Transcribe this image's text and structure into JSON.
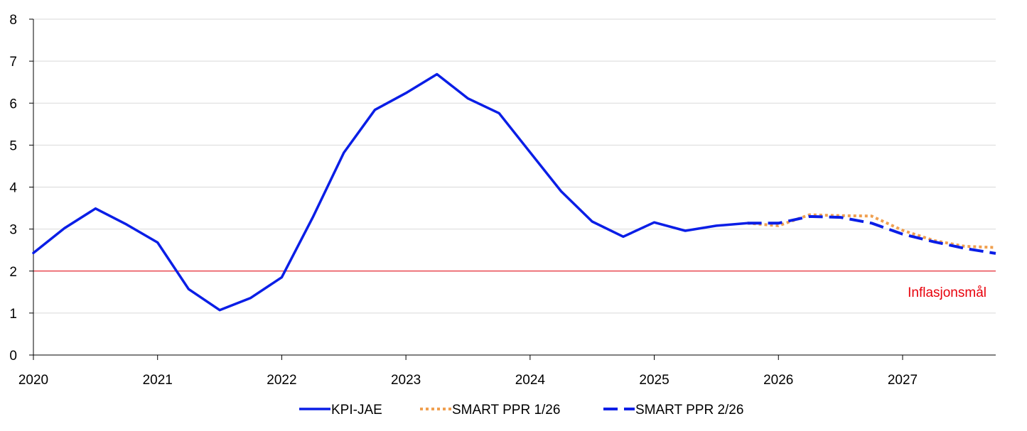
{
  "chart_data": {
    "type": "line",
    "title": "",
    "xlabel": "",
    "ylabel": "",
    "xlim": [
      2020.0,
      2027.75
    ],
    "ylim": [
      0,
      8
    ],
    "y_ticks": [
      0,
      1,
      2,
      3,
      4,
      5,
      6,
      7,
      8
    ],
    "x_ticks": [
      {
        "value": 2020,
        "label": "2020"
      },
      {
        "value": 2021,
        "label": "2021"
      },
      {
        "value": 2022,
        "label": "2022"
      },
      {
        "value": 2023,
        "label": "2023"
      },
      {
        "value": 2024,
        "label": "2024"
      },
      {
        "value": 2025,
        "label": "2025"
      },
      {
        "value": 2026,
        "label": "2026"
      },
      {
        "value": 2027,
        "label": "2027"
      }
    ],
    "grid": "horizontal",
    "legend_position": "bottom-center",
    "reference_line": {
      "y": 2,
      "label": "Inflasjonsmål",
      "color": "#e8000b"
    },
    "series": [
      {
        "name": "KPI-JAE",
        "style": "solid",
        "color": "#0a1ee6",
        "x": [
          2020.0,
          2020.25,
          2020.5,
          2020.75,
          2021.0,
          2021.25,
          2021.5,
          2021.75,
          2022.0,
          2022.25,
          2022.5,
          2022.75,
          2023.0,
          2023.25,
          2023.5,
          2023.75,
          2024.0,
          2024.25,
          2024.5,
          2024.75,
          2025.0,
          2025.25,
          2025.5,
          2025.75
        ],
        "values": [
          2.43,
          3.02,
          3.49,
          3.11,
          2.68,
          1.57,
          1.07,
          1.36,
          1.85,
          3.28,
          4.82,
          5.84,
          6.24,
          6.69,
          6.11,
          5.76,
          4.83,
          3.9,
          3.18,
          2.82,
          3.16,
          2.96,
          3.08,
          3.14
        ]
      },
      {
        "name": "SMART PPR 1/26",
        "style": "dotted",
        "color": "#f0a050",
        "x": [
          2025.75,
          2026.0,
          2026.25,
          2026.5,
          2026.75,
          2027.0,
          2027.25,
          2027.5,
          2027.75
        ],
        "values": [
          3.14,
          3.08,
          3.34,
          3.32,
          3.31,
          2.97,
          2.73,
          2.59,
          2.56
        ]
      },
      {
        "name": "SMART PPR 2/26",
        "style": "dashed",
        "color": "#0a1ee6",
        "x": [
          2025.75,
          2026.0,
          2026.25,
          2026.5,
          2026.75,
          2027.0,
          2027.25,
          2027.5,
          2027.75
        ],
        "values": [
          3.14,
          3.14,
          3.3,
          3.28,
          3.14,
          2.88,
          2.7,
          2.54,
          2.42
        ]
      }
    ]
  }
}
